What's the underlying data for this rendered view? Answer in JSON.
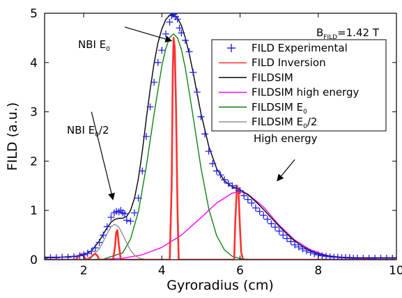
{
  "chart_data": {
    "type": "line",
    "xlabel": "Gyroradius (cm)",
    "ylabel": "FILD (a.u.)",
    "xlim": [
      1,
      10
    ],
    "ylim": [
      0,
      5
    ],
    "xticks": [
      2,
      4,
      6,
      8,
      10
    ],
    "yticks": [
      0,
      1,
      2,
      3,
      4,
      5
    ],
    "x_tick_labels": [
      "2",
      "4",
      "6",
      "8",
      "10"
    ],
    "y_tick_labels": [
      "0",
      "1",
      "2",
      "3",
      "4",
      "5"
    ],
    "field_label": {
      "main": "B",
      "sub": "FILD",
      "value": "=1.42 T"
    },
    "legend": {
      "position": "top-right",
      "entries": [
        {
          "key": "experimental",
          "main": "FILD Experimental",
          "sub": "",
          "tail": "",
          "color": "#2020e8",
          "marker": "plus"
        },
        {
          "key": "inversion",
          "main": "FILD Inversion",
          "sub": "",
          "tail": "",
          "color": "#ff3030",
          "marker": "line"
        },
        {
          "key": "fildsim",
          "main": "FILDSIM",
          "sub": "",
          "tail": "",
          "color": "#000000",
          "marker": "line"
        },
        {
          "key": "high",
          "main": "FILDSIM high energy",
          "sub": "",
          "tail": "",
          "color": "#ff00ff",
          "marker": "line"
        },
        {
          "key": "e0",
          "main": "FILDSIM E",
          "sub": "0",
          "tail": "",
          "color": "#108010",
          "marker": "line"
        },
        {
          "key": "e0half",
          "main": "FILDSIM E",
          "sub": "0",
          "tail": "/2",
          "color": "#909090",
          "marker": "line"
        }
      ]
    },
    "annotations": [
      {
        "key": "nbi_e0",
        "main": "NBI E",
        "sub": "0",
        "tail": "",
        "arrow_from": [
          3.05,
          4.72
        ],
        "arrow_to": [
          4.25,
          4.44
        ]
      },
      {
        "key": "nbi_e0half",
        "main": "NBI E",
        "sub": "0",
        "tail": "/2",
        "arrow_from": [
          2.2,
          3.0
        ],
        "arrow_to": [
          2.75,
          1.22
        ]
      },
      {
        "key": "high_energy",
        "main": "High energy",
        "sub": "",
        "tail": "",
        "arrow_from": [
          7.4,
          2.03
        ],
        "arrow_to": [
          6.95,
          1.6
        ]
      }
    ],
    "series": [
      {
        "name": "FILD Experimental",
        "key": "experimental",
        "style": "markers",
        "color": "#2020e8",
        "x": [
          1.0,
          1.15,
          1.3,
          1.45,
          1.6,
          1.75,
          1.9,
          2.0,
          2.1,
          2.2,
          2.3,
          2.4,
          2.5,
          2.6,
          2.7,
          2.78,
          2.84,
          2.9,
          2.95,
          3.0,
          3.05,
          3.1,
          3.2,
          3.3,
          3.4,
          3.5,
          3.6,
          3.7,
          3.8,
          3.9,
          4.0,
          4.1,
          4.2,
          4.25,
          4.3,
          4.35,
          4.4,
          4.45,
          4.5,
          4.6,
          4.7,
          4.8,
          4.9,
          5.0,
          5.1,
          5.2,
          5.3,
          5.4,
          5.5,
          5.6,
          5.7,
          5.8,
          5.9,
          6.0,
          6.1,
          6.2,
          6.3,
          6.4,
          6.5,
          6.6,
          6.7,
          6.8,
          6.9,
          7.0,
          7.1,
          7.2,
          7.3,
          7.4,
          7.5,
          7.6,
          7.7,
          7.8,
          7.9,
          8.0,
          8.1,
          8.2,
          8.3,
          8.4,
          8.5,
          8.6,
          8.7,
          8.8,
          8.9,
          9.0,
          9.15,
          9.3,
          9.45,
          9.6,
          9.75,
          9.9
        ],
        "y": [
          0.03,
          0.04,
          0.04,
          0.05,
          0.05,
          0.06,
          0.08,
          0.1,
          0.13,
          0.17,
          0.24,
          0.35,
          0.5,
          0.67,
          0.86,
          0.95,
          0.98,
          0.97,
          1.0,
          0.95,
          0.93,
          0.8,
          0.78,
          0.95,
          1.25,
          1.8,
          2.5,
          3.1,
          3.6,
          4.0,
          4.25,
          4.58,
          4.82,
          4.95,
          4.98,
          4.93,
          4.88,
          4.7,
          4.6,
          4.45,
          4.22,
          3.8,
          3.4,
          2.9,
          2.55,
          2.2,
          1.95,
          1.8,
          1.72,
          1.62,
          1.55,
          1.5,
          1.45,
          1.4,
          1.3,
          1.22,
          1.15,
          1.05,
          0.98,
          0.9,
          0.82,
          0.73,
          0.66,
          0.58,
          0.5,
          0.43,
          0.37,
          0.3,
          0.26,
          0.22,
          0.18,
          0.15,
          0.12,
          0.1,
          0.08,
          0.07,
          0.06,
          0.05,
          0.05,
          0.04,
          0.04,
          0.04,
          0.03,
          0.03,
          0.03,
          0.03,
          0.03,
          0.03,
          0.03,
          0.03
        ]
      },
      {
        "name": "FILD Inversion",
        "key": "inversion",
        "style": "line",
        "color": "#ff3030",
        "x": [
          1.0,
          1.8,
          1.9,
          1.95,
          2.0,
          2.05,
          2.1,
          2.15,
          2.25,
          2.3,
          2.35,
          2.4,
          2.75,
          2.8,
          2.83,
          2.86,
          2.9,
          2.95,
          4.2,
          4.25,
          4.28,
          4.3,
          4.33,
          4.36,
          4.4,
          4.43,
          5.85,
          5.88,
          5.92,
          5.96,
          6.0,
          6.03,
          6.08,
          10.0
        ],
        "y": [
          0,
          0,
          0.1,
          0.12,
          0.08,
          0,
          0,
          0.02,
          0.1,
          0.12,
          0.08,
          0,
          0,
          0.25,
          0.55,
          0.6,
          0.3,
          0,
          0,
          1.5,
          3.8,
          4.5,
          4.3,
          3.2,
          1.0,
          0,
          0,
          0.8,
          1.5,
          1.4,
          0.6,
          0.15,
          0,
          0
        ]
      },
      {
        "name": "FILDSIM",
        "key": "fildsim",
        "style": "line",
        "color": "#000000",
        "x": [
          1.0,
          1.4,
          1.8,
          2.0,
          2.2,
          2.4,
          2.5,
          2.6,
          2.7,
          2.8,
          2.9,
          3.0,
          3.1,
          3.2,
          3.3,
          3.4,
          3.5,
          3.6,
          3.7,
          3.8,
          3.9,
          4.0,
          4.1,
          4.2,
          4.3,
          4.4,
          4.5,
          4.6,
          4.7,
          4.8,
          4.9,
          5.0,
          5.2,
          5.4,
          5.6,
          5.8,
          6.0,
          6.2,
          6.4,
          6.6,
          6.8,
          7.0,
          7.2,
          7.4,
          7.6,
          7.8,
          8.0,
          8.3,
          8.6,
          9.0,
          9.5,
          10.0
        ],
        "y": [
          0.05,
          0.05,
          0.07,
          0.1,
          0.18,
          0.38,
          0.52,
          0.65,
          0.76,
          0.82,
          0.84,
          0.84,
          0.88,
          1.0,
          1.25,
          1.65,
          2.2,
          2.85,
          3.45,
          3.98,
          4.4,
          4.68,
          4.87,
          4.96,
          4.97,
          4.9,
          4.75,
          4.5,
          4.18,
          3.8,
          3.38,
          2.97,
          2.3,
          1.85,
          1.6,
          1.48,
          1.42,
          1.32,
          1.18,
          1.02,
          0.85,
          0.68,
          0.52,
          0.38,
          0.27,
          0.18,
          0.12,
          0.07,
          0.05,
          0.04,
          0.04,
          0.04
        ]
      },
      {
        "name": "FILDSIM high energy",
        "key": "high",
        "style": "line",
        "color": "#ff00ff",
        "x": [
          1.0,
          2.0,
          2.5,
          3.0,
          3.5,
          4.0,
          4.5,
          5.0,
          5.4,
          5.8,
          6.0,
          6.2,
          6.6,
          7.0,
          7.4,
          7.8,
          8.2,
          8.6,
          9.0,
          9.5,
          10.0
        ],
        "y": [
          0.0,
          0.0,
          0.01,
          0.03,
          0.1,
          0.25,
          0.5,
          0.85,
          1.15,
          1.35,
          1.38,
          1.33,
          1.07,
          0.7,
          0.4,
          0.2,
          0.09,
          0.04,
          0.02,
          0.01,
          0.0
        ],
        "hidden_below": 0.005
      },
      {
        "name": "FILDSIM E0",
        "key": "e0",
        "style": "line",
        "color": "#108010",
        "x": [
          2.0,
          2.5,
          3.0,
          3.2,
          3.4,
          3.6,
          3.8,
          4.0,
          4.1,
          4.2,
          4.3,
          4.4,
          4.5,
          4.6,
          4.8,
          5.0,
          5.2,
          5.4,
          5.6,
          5.8,
          6.0,
          6.3,
          6.6,
          7.0
        ],
        "y": [
          0.0,
          0.01,
          0.14,
          0.42,
          0.98,
          1.88,
          2.95,
          3.93,
          4.28,
          4.51,
          4.58,
          4.5,
          4.26,
          3.89,
          2.9,
          1.87,
          1.03,
          0.49,
          0.2,
          0.07,
          0.02,
          0.0,
          0.0,
          0.0
        ]
      },
      {
        "name": "FILDSIM E0/2",
        "key": "e0half",
        "style": "line",
        "color": "#909090",
        "x": [
          1.8,
          2.0,
          2.2,
          2.4,
          2.5,
          2.6,
          2.7,
          2.8,
          2.9,
          3.0,
          3.1,
          3.2,
          3.3,
          3.4,
          3.6
        ],
        "y": [
          0.0,
          0.01,
          0.06,
          0.22,
          0.37,
          0.53,
          0.67,
          0.72,
          0.66,
          0.51,
          0.34,
          0.19,
          0.09,
          0.04,
          0.0
        ]
      }
    ]
  }
}
